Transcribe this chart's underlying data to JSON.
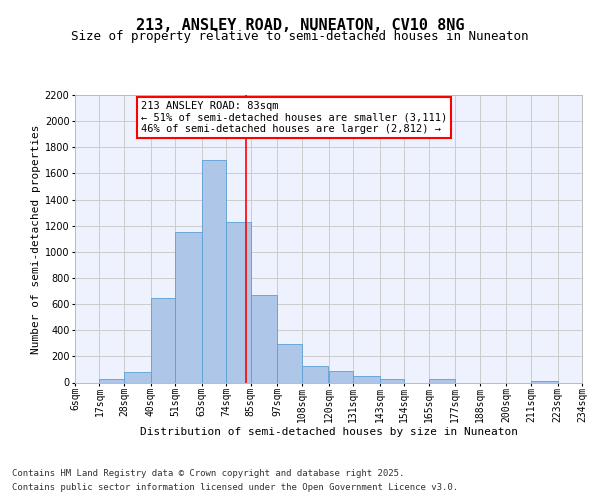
{
  "title_line1": "213, ANSLEY ROAD, NUNEATON, CV10 8NG",
  "title_line2": "Size of property relative to semi-detached houses in Nuneaton",
  "xlabel": "Distribution of semi-detached houses by size in Nuneaton",
  "ylabel": "Number of semi-detached properties",
  "footer_line1": "Contains HM Land Registry data © Crown copyright and database right 2025.",
  "footer_line2": "Contains public sector information licensed under the Open Government Licence v3.0.",
  "annotation_title": "213 ANSLEY ROAD: 83sqm",
  "annotation_line1": "← 51% of semi-detached houses are smaller (3,111)",
  "annotation_line2": "46% of semi-detached houses are larger (2,812) →",
  "property_size": 83,
  "bin_edges": [
    6,
    17,
    28,
    40,
    51,
    63,
    74,
    85,
    97,
    108,
    120,
    131,
    143,
    154,
    165,
    177,
    188,
    200,
    211,
    223,
    234
  ],
  "bin_labels": [
    "6sqm",
    "17sqm",
    "28sqm",
    "40sqm",
    "51sqm",
    "63sqm",
    "74sqm",
    "85sqm",
    "97sqm",
    "108sqm",
    "120sqm",
    "131sqm",
    "143sqm",
    "154sqm",
    "165sqm",
    "177sqm",
    "188sqm",
    "200sqm",
    "211sqm",
    "223sqm",
    "234sqm"
  ],
  "counts": [
    0,
    25,
    80,
    645,
    1150,
    1700,
    1230,
    670,
    295,
    125,
    90,
    48,
    30,
    0,
    25,
    0,
    0,
    0,
    10,
    0
  ],
  "bar_color": "#aec6e8",
  "bar_edge_color": "#5a9fd4",
  "vline_color": "red",
  "vline_x": 83,
  "ylim": [
    0,
    2200
  ],
  "yticks": [
    0,
    200,
    400,
    600,
    800,
    1000,
    1200,
    1400,
    1600,
    1800,
    2000,
    2200
  ],
  "grid_color": "#cccccc",
  "bg_color": "#eef2ff",
  "title_fontsize": 11,
  "subtitle_fontsize": 9,
  "axis_label_fontsize": 8,
  "tick_fontsize": 7,
  "footer_fontsize": 6.5,
  "annotation_fontsize": 7.5
}
